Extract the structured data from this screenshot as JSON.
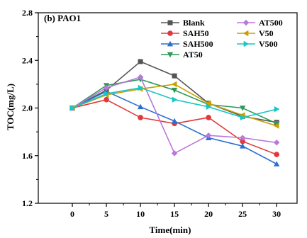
{
  "chart_data": {
    "type": "line",
    "panel_label": "(b)  PAO1",
    "xlabel": "Time(min)",
    "ylabel": "TOC(mg/L)",
    "x": [
      0,
      5,
      10,
      15,
      20,
      25,
      30
    ],
    "xlim": [
      -5,
      33
    ],
    "ylim": [
      1.2,
      2.8
    ],
    "x_ticks": [
      0,
      5,
      10,
      15,
      20,
      25,
      30
    ],
    "y_ticks": [
      1.2,
      1.6,
      2.0,
      2.4,
      2.8
    ],
    "y_tick_labels": [
      "1.2",
      "1.6",
      "2.0",
      "2.4",
      "2.8"
    ],
    "grid": false,
    "legend_position": "top-right",
    "series": [
      {
        "name": "Blank",
        "color": "#555555",
        "marker": "square",
        "values": [
          2.0,
          2.15,
          2.39,
          2.27,
          2.04,
          1.93,
          1.88
        ]
      },
      {
        "name": "SAH50",
        "color": "#e0393b",
        "marker": "circle",
        "values": [
          2.0,
          2.07,
          1.92,
          1.87,
          1.92,
          1.72,
          1.61
        ]
      },
      {
        "name": "SAH500",
        "color": "#2b6fd1",
        "marker": "triangle-up",
        "values": [
          2.0,
          2.14,
          2.01,
          1.89,
          1.75,
          1.68,
          1.53
        ]
      },
      {
        "name": "AT50",
        "color": "#2e9a58",
        "marker": "triangle-down",
        "values": [
          2.0,
          2.19,
          2.24,
          2.15,
          2.03,
          2.0,
          1.87
        ]
      },
      {
        "name": "AT500",
        "color": "#bb77d9",
        "marker": "diamond",
        "values": [
          2.0,
          2.17,
          2.26,
          1.62,
          1.77,
          1.75,
          1.71
        ]
      },
      {
        "name": "V50",
        "color": "#c9a000",
        "marker": "triangle-left",
        "values": [
          2.0,
          2.11,
          2.16,
          2.2,
          2.04,
          1.94,
          1.85
        ]
      },
      {
        "name": "V500",
        "color": "#17c6c6",
        "marker": "triangle-right",
        "values": [
          2.0,
          2.12,
          2.17,
          2.07,
          2.01,
          1.92,
          1.99
        ]
      }
    ]
  }
}
